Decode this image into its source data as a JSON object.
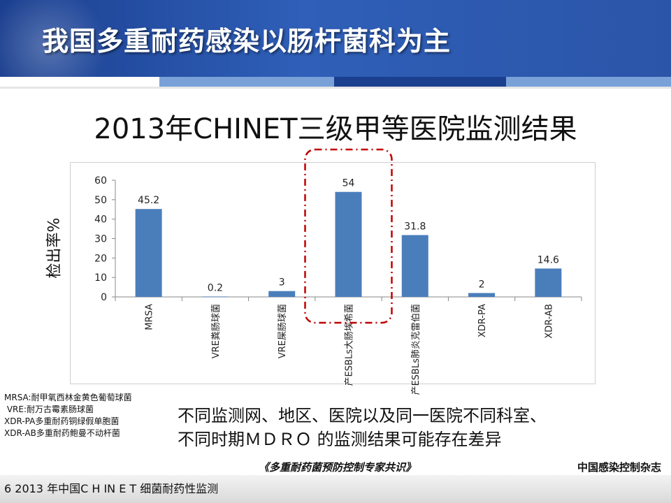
{
  "slide": {
    "title": "我国多重耐药感染以肠杆菌科为主",
    "subtitle": "2013年CHINET三级甲等医院监测结果",
    "legend_notes": [
      "MRSA:耐甲氧西林金黄色葡萄球菌",
      " VRE:耐万古霉素肠球菌",
      "XDR-PA多重耐药铜绿假单胞菌",
      "XDR-AB多重耐药鲍曼不动杆菌"
    ],
    "note_lines": [
      "不同监测网、地区、医院以及同一医院不同科室、",
      "不同时期ＭＤＲＯ 的监测结果可能存在差异"
    ],
    "source": "《多重耐药菌预防控制专家共识》",
    "journal": "中国感染控制杂志",
    "footer": "6   2013 年中国C H IN E T 细菌耐药性监测",
    "colors": {
      "header": "#2b55a8",
      "bar": "#4a7ebb",
      "highlight": "#c00000"
    }
  },
  "chart_data": {
    "type": "bar",
    "categories": [
      "MRSA",
      "VRE粪肠球菌",
      "VRE屎肠球菌",
      "产ESBLs大肠埃希菌",
      "产ESBLs肺炎克雷伯菌",
      "XDR-PA",
      "XDR-AB"
    ],
    "values": [
      45.2,
      0.2,
      3,
      54,
      31.8,
      2,
      14.6
    ],
    "data_labels": [
      "45.2",
      "0.2",
      "3",
      "54",
      "31.8",
      "2",
      "14.6"
    ],
    "ylabel": "检出率%",
    "ylim": [
      0,
      60
    ],
    "yticks": [
      0,
      10,
      20,
      30,
      40,
      50,
      60
    ],
    "highlighted_category": "产ESBLs大肠埃希菌",
    "grid": false,
    "legend": "none"
  }
}
